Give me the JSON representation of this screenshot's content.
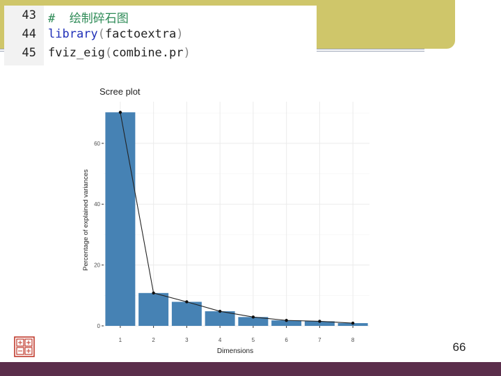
{
  "code": {
    "lines": [
      {
        "num": "43",
        "text": "#  绘制碎石图"
      },
      {
        "num": "44",
        "fn": "library",
        "open": "(",
        "arg": "factoextra",
        "close": ")"
      },
      {
        "num": "45",
        "fn": "fviz_eig",
        "open": "(",
        "arg": "combine.pr",
        "close": ")"
      }
    ]
  },
  "page_number": "66",
  "colors": {
    "banner": "#cfc66a",
    "bar": "#4682b4",
    "footer": "#5b2e4b"
  },
  "chart_data": {
    "type": "bar",
    "title": "Scree plot",
    "xlabel": "Dimensions",
    "ylabel": "Percentage of explained variances",
    "categories": [
      "1",
      "2",
      "3",
      "4",
      "5",
      "6",
      "7",
      "8"
    ],
    "values": [
      70.2,
      10.8,
      7.9,
      4.8,
      2.9,
      1.8,
      1.5,
      0.9
    ],
    "line_overlay": true,
    "yticks": [
      0,
      20,
      40,
      60
    ],
    "ylim": [
      0,
      73.7
    ],
    "grid": true,
    "legend": "none"
  }
}
